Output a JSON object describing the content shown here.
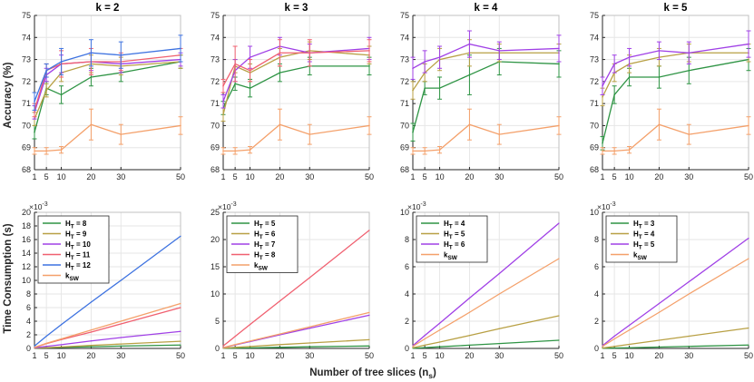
{
  "figure": {
    "ylabel_top": "Accuracy (%)",
    "ylabel_bottom": "Time Consumption (s)",
    "xlabel": "Number of tree slices (n",
    "xlabel_sub": "s",
    "xlabel_tail": ")"
  },
  "chart_data": [
    {
      "type": "line",
      "title": "k = 2",
      "ylabel": "Accuracy (%)",
      "x": [
        1,
        5,
        10,
        20,
        30,
        50
      ],
      "xticks": [
        "1",
        "5",
        "10",
        "20",
        "30",
        "50"
      ],
      "ylim": [
        68,
        75
      ],
      "yticks": [
        "68",
        "69",
        "70",
        "71",
        "72",
        "73",
        "74",
        "75"
      ],
      "series": [
        {
          "name": "HT=8",
          "color": "#2e9444",
          "values": [
            69.7,
            71.7,
            71.4,
            72.2,
            72.4,
            72.9
          ],
          "err": [
            0.3,
            0.3,
            0.4,
            0.4,
            0.4,
            0.3
          ]
        },
        {
          "name": "HT=9",
          "color": "#b8a044",
          "values": [
            70.3,
            71.6,
            72.4,
            72.8,
            72.7,
            72.9
          ],
          "err": [
            0.3,
            0.3,
            0.4,
            0.4,
            0.4,
            0.3
          ]
        },
        {
          "name": "HT=10",
          "color": "#a040e6",
          "values": [
            70.6,
            72.3,
            72.8,
            72.9,
            72.8,
            73.0
          ],
          "err": [
            0.3,
            0.3,
            0.4,
            0.4,
            0.4,
            0.3
          ]
        },
        {
          "name": "HT=11",
          "color": "#f06070",
          "values": [
            70.7,
            72.5,
            72.8,
            72.9,
            72.9,
            73.2
          ],
          "err": [
            0.3,
            0.3,
            0.6,
            0.6,
            0.4,
            0.3
          ]
        },
        {
          "name": "HT=12",
          "color": "#3d72e0",
          "values": [
            71.1,
            72.5,
            72.9,
            73.3,
            73.2,
            73.5
          ],
          "err": [
            0.4,
            0.3,
            0.6,
            0.6,
            0.6,
            0.6
          ]
        },
        {
          "name": "ksw",
          "color": "#f4a06a",
          "values": [
            68.85,
            68.85,
            68.9,
            70.05,
            69.6,
            70.0
          ],
          "err": [
            0.15,
            0.15,
            0.15,
            0.7,
            0.45,
            0.4
          ]
        }
      ]
    },
    {
      "type": "line",
      "title": "k = 3",
      "ylabel": "Accuracy (%)",
      "x": [
        1,
        5,
        10,
        20,
        30,
        50
      ],
      "xticks": [
        "1",
        "5",
        "10",
        "20",
        "30",
        "50"
      ],
      "ylim": [
        68,
        75
      ],
      "yticks": [
        "68",
        "69",
        "70",
        "71",
        "72",
        "73",
        "74",
        "75"
      ],
      "series": [
        {
          "name": "HT=5",
          "color": "#2e9444",
          "values": [
            70.8,
            71.9,
            71.7,
            72.4,
            72.7,
            72.7
          ],
          "err": [
            0.3,
            0.3,
            0.4,
            0.4,
            0.4,
            0.4
          ]
        },
        {
          "name": "HT=6",
          "color": "#b8a044",
          "values": [
            70.5,
            72.7,
            72.4,
            73.1,
            73.4,
            73.2
          ],
          "err": [
            0.3,
            0.3,
            0.4,
            0.4,
            0.4,
            0.4
          ]
        },
        {
          "name": "HT=7",
          "color": "#a040e6",
          "values": [
            71.1,
            72.5,
            73.1,
            73.6,
            73.3,
            73.5
          ],
          "err": [
            0.3,
            0.5,
            0.5,
            0.4,
            0.4,
            0.5
          ]
        },
        {
          "name": "HT=8",
          "color": "#f06070",
          "values": [
            71.8,
            72.8,
            72.5,
            73.3,
            73.3,
            73.4
          ],
          "err": [
            0.3,
            0.8,
            0.5,
            0.6,
            0.6,
            0.5
          ]
        },
        {
          "name": "ksw",
          "color": "#f4a06a",
          "values": [
            68.85,
            68.85,
            68.9,
            70.05,
            69.6,
            70.0
          ],
          "err": [
            0.15,
            0.15,
            0.15,
            0.7,
            0.45,
            0.4
          ]
        }
      ]
    },
    {
      "type": "line",
      "title": "k = 4",
      "ylabel": "Accuracy (%)",
      "x": [
        1,
        5,
        10,
        20,
        30,
        50
      ],
      "xticks": [
        "1",
        "5",
        "10",
        "20",
        "30",
        "50"
      ],
      "ylim": [
        68,
        75
      ],
      "yticks": [
        "68",
        "69",
        "70",
        "71",
        "72",
        "73",
        "74",
        "75"
      ],
      "series": [
        {
          "name": "HT=4",
          "color": "#2e9444",
          "values": [
            69.7,
            71.7,
            71.7,
            72.3,
            72.9,
            72.8
          ],
          "err": [
            0.4,
            0.3,
            0.5,
            0.9,
            0.6,
            0.6
          ]
        },
        {
          "name": "HT=5",
          "color": "#b8a044",
          "values": [
            71.6,
            72.4,
            73.0,
            73.3,
            73.3,
            73.3
          ],
          "err": [
            0.4,
            0.4,
            0.5,
            0.6,
            0.4,
            0.4
          ]
        },
        {
          "name": "HT=6",
          "color": "#a040e6",
          "values": [
            72.6,
            72.9,
            73.1,
            73.7,
            73.4,
            73.5
          ],
          "err": [
            0.5,
            0.5,
            0.5,
            0.6,
            0.4,
            0.6
          ]
        },
        {
          "name": "ksw",
          "color": "#f4a06a",
          "values": [
            68.85,
            68.85,
            68.9,
            70.05,
            69.6,
            70.0
          ],
          "err": [
            0.15,
            0.15,
            0.15,
            0.7,
            0.45,
            0.4
          ]
        }
      ]
    },
    {
      "type": "line",
      "title": "k = 5",
      "ylabel": "Accuracy (%)",
      "x": [
        1,
        5,
        10,
        20,
        30,
        50
      ],
      "xticks": [
        "1",
        "5",
        "10",
        "20",
        "30",
        "50"
      ],
      "ylim": [
        68,
        75
      ],
      "yticks": [
        "68",
        "69",
        "70",
        "71",
        "72",
        "73",
        "74",
        "75"
      ],
      "series": [
        {
          "name": "HT=3",
          "color": "#2e9444",
          "values": [
            69.2,
            71.4,
            72.2,
            72.2,
            72.5,
            73.0
          ],
          "err": [
            0.3,
            0.4,
            0.4,
            0.5,
            0.6,
            0.5
          ]
        },
        {
          "name": "HT=4",
          "color": "#b8a044",
          "values": [
            71.3,
            72.4,
            72.8,
            73.1,
            73.3,
            73.3
          ],
          "err": [
            0.4,
            0.4,
            0.4,
            0.4,
            0.4,
            0.4
          ]
        },
        {
          "name": "HT=5",
          "color": "#a040e6",
          "values": [
            71.8,
            72.8,
            73.1,
            73.4,
            73.3,
            73.7
          ],
          "err": [
            0.4,
            0.4,
            0.4,
            0.4,
            0.5,
            0.6
          ]
        },
        {
          "name": "ksw",
          "color": "#f4a06a",
          "values": [
            68.85,
            68.85,
            68.9,
            70.05,
            69.6,
            70.0
          ],
          "err": [
            0.15,
            0.15,
            0.15,
            0.7,
            0.45,
            0.4
          ]
        }
      ]
    },
    {
      "type": "line",
      "ylabel": "Time Consumption (s)",
      "scale_label": "×10",
      "scale_exp": "-3",
      "legend": "top-left",
      "x": [
        1,
        5,
        10,
        20,
        30,
        50
      ],
      "xticks": [
        "1",
        "5",
        "10",
        "20",
        "30",
        "50"
      ],
      "ylim": [
        0,
        20
      ],
      "yticks": [
        "0",
        "2",
        "4",
        "6",
        "8",
        "10",
        "12",
        "14",
        "16",
        "18",
        "20"
      ],
      "series": [
        {
          "name": "HT=8",
          "label": "H",
          "sub": "T",
          "tail": " = 8",
          "color": "#2e9444",
          "values": [
            0.05,
            0.1,
            0.15,
            0.25,
            0.35,
            0.5
          ]
        },
        {
          "name": "HT=9",
          "label": "H",
          "sub": "T",
          "tail": " = 9",
          "color": "#b8a044",
          "values": [
            0.05,
            0.12,
            0.22,
            0.45,
            0.65,
            1.05
          ]
        },
        {
          "name": "HT=10",
          "label": "H",
          "sub": "T",
          "tail": " = 10",
          "color": "#a040e6",
          "values": [
            0.1,
            0.3,
            0.55,
            1.1,
            1.6,
            2.5
          ]
        },
        {
          "name": "HT=11",
          "label": "H",
          "sub": "T",
          "tail": " = 11",
          "color": "#f06070",
          "values": [
            0.15,
            0.7,
            1.3,
            2.4,
            3.6,
            6.0
          ]
        },
        {
          "name": "HT=12",
          "label": "H",
          "sub": "T",
          "tail": " = 12",
          "color": "#3d72e0",
          "values": [
            0.35,
            1.8,
            3.5,
            6.8,
            10.0,
            16.5
          ]
        },
        {
          "name": "ksw",
          "label": "k",
          "sub": "SW",
          "tail": "",
          "color": "#f4a06a",
          "values": [
            0.15,
            0.75,
            1.4,
            2.7,
            4.0,
            6.6
          ]
        }
      ]
    },
    {
      "type": "line",
      "ylabel": "Time Consumption (s)",
      "scale_label": "×10",
      "scale_exp": "-3",
      "legend": "top-left",
      "x": [
        1,
        5,
        10,
        20,
        30,
        50
      ],
      "xticks": [
        "1",
        "5",
        "10",
        "20",
        "30",
        "50"
      ],
      "ylim": [
        0,
        25
      ],
      "yticks": [
        "0",
        "5",
        "10",
        "15",
        "20",
        "25"
      ],
      "series": [
        {
          "name": "HT=5",
          "label": "H",
          "sub": "T",
          "tail": " = 5",
          "color": "#2e9444",
          "values": [
            0.02,
            0.06,
            0.1,
            0.2,
            0.3,
            0.45
          ]
        },
        {
          "name": "HT=6",
          "label": "H",
          "sub": "T",
          "tail": " = 6",
          "color": "#b8a044",
          "values": [
            0.05,
            0.2,
            0.35,
            0.7,
            1.0,
            1.6
          ]
        },
        {
          "name": "HT=7",
          "label": "H",
          "sub": "T",
          "tail": " = 7",
          "color": "#a040e6",
          "values": [
            0.15,
            0.65,
            1.25,
            2.5,
            3.7,
            6.1
          ]
        },
        {
          "name": "HT=8",
          "label": "H",
          "sub": "T",
          "tail": " = 8",
          "color": "#f06070",
          "values": [
            0.45,
            2.2,
            4.4,
            8.7,
            13.0,
            21.7
          ]
        },
        {
          "name": "ksw",
          "label": "k",
          "sub": "SW",
          "tail": "",
          "color": "#f4a06a",
          "values": [
            0.15,
            0.7,
            1.35,
            2.65,
            3.95,
            6.6
          ]
        }
      ]
    },
    {
      "type": "line",
      "ylabel": "Time Consumption (s)",
      "scale_label": "×10",
      "scale_exp": "-3",
      "legend": "top-left",
      "x": [
        1,
        5,
        10,
        20,
        30,
        50
      ],
      "xticks": [
        "1",
        "5",
        "10",
        "20",
        "30",
        "50"
      ],
      "ylim": [
        0,
        10
      ],
      "yticks": [
        "0",
        "2",
        "4",
        "6",
        "8",
        "10"
      ],
      "series": [
        {
          "name": "HT=4",
          "label": "H",
          "sub": "T",
          "tail": " = 4",
          "color": "#2e9444",
          "values": [
            0.01,
            0.06,
            0.12,
            0.24,
            0.36,
            0.6
          ]
        },
        {
          "name": "HT=5",
          "label": "H",
          "sub": "T",
          "tail": " = 5",
          "color": "#b8a044",
          "values": [
            0.05,
            0.24,
            0.47,
            0.95,
            1.45,
            2.4
          ]
        },
        {
          "name": "HT=6",
          "label": "H",
          "sub": "T",
          "tail": " = 6",
          "color": "#a040e6",
          "values": [
            0.2,
            0.95,
            1.85,
            3.7,
            5.5,
            9.2
          ]
        },
        {
          "name": "ksw",
          "label": "k",
          "sub": "SW",
          "tail": "",
          "color": "#f4a06a",
          "values": [
            0.15,
            0.7,
            1.35,
            2.65,
            4.0,
            6.6
          ]
        }
      ]
    },
    {
      "type": "line",
      "ylabel": "Time Consumption (s)",
      "scale_label": "×10",
      "scale_exp": "-3",
      "legend": "top-left",
      "x": [
        1,
        5,
        10,
        20,
        30,
        50
      ],
      "xticks": [
        "1",
        "5",
        "10",
        "20",
        "30",
        "50"
      ],
      "ylim": [
        0,
        10
      ],
      "yticks": [
        "0",
        "2",
        "4",
        "6",
        "8",
        "10"
      ],
      "series": [
        {
          "name": "HT=3",
          "label": "H",
          "sub": "T",
          "tail": " = 3",
          "color": "#2e9444",
          "values": [
            0.01,
            0.03,
            0.05,
            0.1,
            0.15,
            0.25
          ]
        },
        {
          "name": "HT=4",
          "label": "H",
          "sub": "T",
          "tail": " = 4",
          "color": "#b8a044",
          "values": [
            0.03,
            0.15,
            0.3,
            0.6,
            0.9,
            1.5
          ]
        },
        {
          "name": "HT=5",
          "label": "H",
          "sub": "T",
          "tail": " = 5",
          "color": "#a040e6",
          "values": [
            0.2,
            0.9,
            1.7,
            3.3,
            4.9,
            8.1
          ]
        },
        {
          "name": "ksw",
          "label": "k",
          "sub": "SW",
          "tail": "",
          "color": "#f4a06a",
          "values": [
            0.15,
            0.7,
            1.35,
            2.65,
            4.0,
            6.6
          ]
        }
      ]
    }
  ]
}
